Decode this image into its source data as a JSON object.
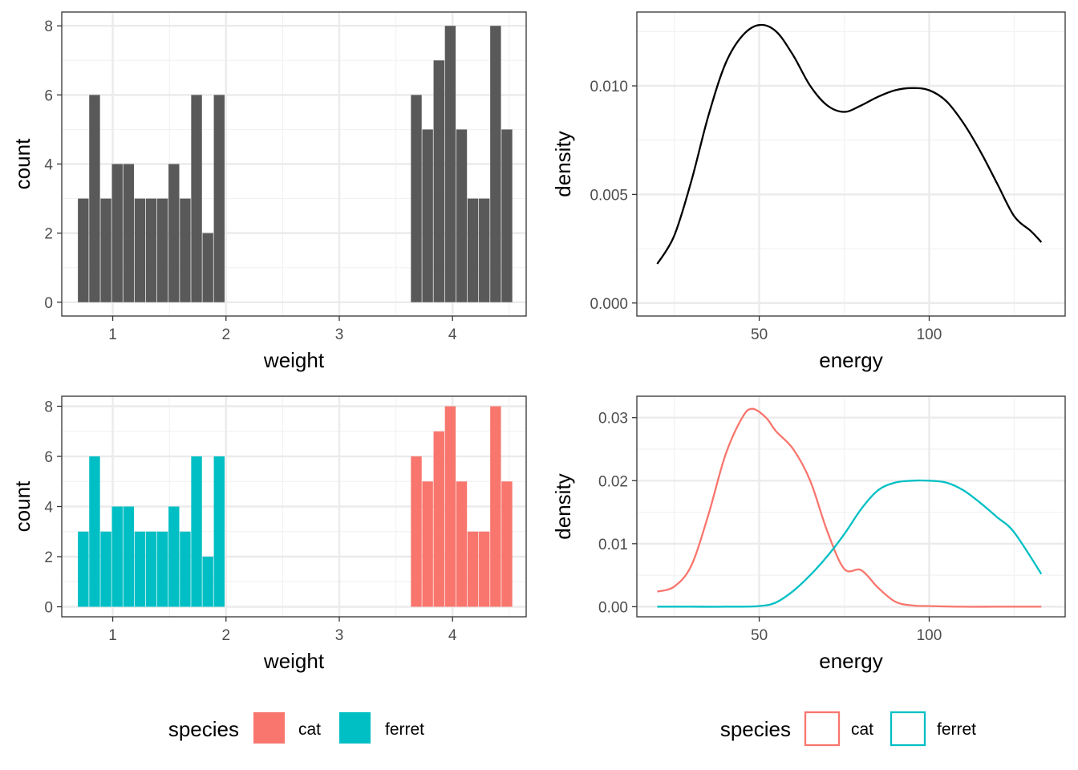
{
  "colors": {
    "cat": "#F8766D",
    "ferret": "#00BFC4",
    "mono": "#595959",
    "density": "#000000"
  },
  "chart_data": [
    {
      "type": "bar",
      "xlabel": "weight",
      "ylabel": "count",
      "xlim": [
        0.55,
        4.65
      ],
      "ylim": [
        -0.4,
        8.4
      ],
      "xticks": [
        1,
        2,
        3,
        4
      ],
      "yticks": [
        0,
        2,
        4,
        6,
        8
      ],
      "bin_width": 0.095,
      "x": [
        0.74,
        0.84,
        0.94,
        1.04,
        1.14,
        1.24,
        1.34,
        1.44,
        1.54,
        1.64,
        1.74,
        1.84,
        1.94,
        3.68,
        3.78,
        3.88,
        3.98,
        4.08,
        4.18,
        4.28,
        4.38,
        4.48
      ],
      "values": [
        3,
        6,
        3,
        4,
        4,
        3,
        3,
        3,
        4,
        3,
        6,
        2,
        6,
        6,
        5,
        7,
        8,
        5,
        3,
        3,
        8,
        5
      ]
    },
    {
      "type": "line",
      "xlabel": "energy",
      "ylabel": "density",
      "xlim": [
        14,
        140
      ],
      "ylim": [
        -0.0006,
        0.0134
      ],
      "xticks": [
        50,
        100
      ],
      "yticks": [
        0.0,
        0.005,
        0.01
      ],
      "ytick_labels": [
        "0.000",
        "0.005",
        "0.010"
      ],
      "x": [
        20,
        25,
        30,
        35,
        40,
        45,
        50,
        55,
        60,
        65,
        70,
        75,
        80,
        85,
        90,
        95,
        100,
        105,
        110,
        115,
        120,
        125,
        130,
        133
      ],
      "values": [
        0.0018,
        0.0031,
        0.0056,
        0.0086,
        0.011,
        0.0123,
        0.0128,
        0.0125,
        0.0114,
        0.01,
        0.0091,
        0.0088,
        0.0091,
        0.0095,
        0.0098,
        0.0099,
        0.0098,
        0.0093,
        0.0083,
        0.007,
        0.0055,
        0.004,
        0.0033,
        0.0028
      ]
    },
    {
      "type": "bar",
      "xlabel": "weight",
      "ylabel": "count",
      "xlim": [
        0.55,
        4.65
      ],
      "ylim": [
        -0.4,
        8.4
      ],
      "xticks": [
        1,
        2,
        3,
        4
      ],
      "yticks": [
        0,
        2,
        4,
        6,
        8
      ],
      "bin_width": 0.095,
      "x": [
        0.74,
        0.84,
        0.94,
        1.04,
        1.14,
        1.24,
        1.34,
        1.44,
        1.54,
        1.64,
        1.74,
        1.84,
        1.94,
        3.68,
        3.78,
        3.88,
        3.98,
        4.08,
        4.18,
        4.28,
        4.38,
        4.48
      ],
      "values": [
        3,
        6,
        3,
        4,
        4,
        3,
        3,
        3,
        4,
        3,
        6,
        2,
        6,
        6,
        5,
        7,
        8,
        5,
        3,
        3,
        8,
        5
      ],
      "species": [
        "ferret",
        "ferret",
        "ferret",
        "ferret",
        "ferret",
        "ferret",
        "ferret",
        "ferret",
        "ferret",
        "ferret",
        "ferret",
        "ferret",
        "ferret",
        "cat",
        "cat",
        "cat",
        "cat",
        "cat",
        "cat",
        "cat",
        "cat",
        "cat"
      ]
    },
    {
      "type": "line",
      "xlabel": "energy",
      "ylabel": "density",
      "xlim": [
        14,
        140
      ],
      "ylim": [
        -0.0016,
        0.0334
      ],
      "xticks": [
        50,
        100
      ],
      "yticks": [
        0.0,
        0.01,
        0.02,
        0.03
      ],
      "ytick_labels": [
        "0.00",
        "0.01",
        "0.02",
        "0.03"
      ],
      "series": [
        {
          "name": "cat",
          "x": [
            20,
            25,
            30,
            35,
            40,
            45,
            48,
            52,
            55,
            60,
            65,
            70,
            75,
            80,
            85,
            90,
            95,
            100,
            110,
            120,
            133
          ],
          "values": [
            0.0024,
            0.0032,
            0.0065,
            0.0145,
            0.024,
            0.03,
            0.0314,
            0.03,
            0.0278,
            0.025,
            0.02,
            0.012,
            0.006,
            0.0058,
            0.003,
            0.0008,
            0.0002,
            0.0001,
            0.0,
            0.0,
            0.0
          ]
        },
        {
          "name": "ferret",
          "x": [
            20,
            30,
            40,
            50,
            55,
            60,
            65,
            70,
            75,
            80,
            85,
            90,
            95,
            100,
            105,
            110,
            115,
            120,
            125,
            133
          ],
          "values": [
            0.0,
            0.0,
            0.0,
            0.0001,
            0.0007,
            0.0025,
            0.005,
            0.008,
            0.0115,
            0.0155,
            0.0185,
            0.0197,
            0.02,
            0.02,
            0.0197,
            0.0185,
            0.0165,
            0.0142,
            0.0118,
            0.0052
          ]
        }
      ]
    }
  ],
  "legends": [
    {
      "title": "species",
      "items": [
        "cat",
        "ferret"
      ],
      "style": "fill"
    },
    {
      "title": "species",
      "items": [
        "cat",
        "ferret"
      ],
      "style": "outline"
    }
  ]
}
